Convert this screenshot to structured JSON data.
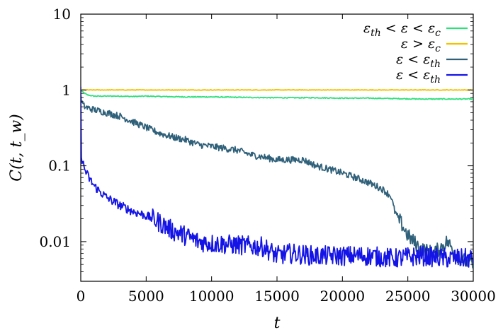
{
  "chart_data": {
    "type": "line",
    "title": "",
    "xlabel": "t",
    "ylabel": "C(t, t_w)",
    "xlim": [
      0,
      30000
    ],
    "ylim": [
      0.003,
      10
    ],
    "yscale": "log",
    "grid": false,
    "legend_position": "top-right",
    "x_ticks": [
      {
        "value": 0,
        "label": "0"
      },
      {
        "value": 5000,
        "label": "5000"
      },
      {
        "value": 10000,
        "label": "10000"
      },
      {
        "value": 15000,
        "label": "15000"
      },
      {
        "value": 20000,
        "label": "20000"
      },
      {
        "value": 25000,
        "label": "25000"
      },
      {
        "value": 30000,
        "label": "30000"
      }
    ],
    "y_ticks": [
      {
        "value": 0.01,
        "label": "0.01"
      },
      {
        "value": 0.1,
        "label": "0.1"
      },
      {
        "value": 1,
        "label": "1"
      },
      {
        "value": 10,
        "label": "10"
      }
    ],
    "series": [
      {
        "name": "ε_th < ε < ε_c",
        "color": "#2ee07a",
        "noise": 0.006,
        "x": [
          0,
          100,
          500,
          1000,
          2000,
          3000,
          4000,
          5000,
          6000,
          8000,
          10000,
          12000,
          15000,
          18000,
          20000,
          22000,
          24000,
          26000,
          27000,
          28000,
          30000
        ],
        "y": [
          1.0,
          0.95,
          0.86,
          0.83,
          0.83,
          0.83,
          0.82,
          0.83,
          0.82,
          0.81,
          0.81,
          0.8,
          0.79,
          0.79,
          0.78,
          0.78,
          0.77,
          0.76,
          0.76,
          0.76,
          0.76
        ]
      },
      {
        "name": "ε > ε_c",
        "color": "#f2c200",
        "noise": 0.004,
        "x": [
          0,
          5000,
          10000,
          15000,
          20000,
          25000,
          30000
        ],
        "y": [
          1.0,
          1.0,
          1.0,
          1.0,
          1.0,
          1.0,
          1.0
        ]
      },
      {
        "name": "ε < ε_th",
        "color": "#30617a",
        "noise": 0.045,
        "x": [
          0,
          50,
          200,
          500,
          1000,
          2000,
          3000,
          4000,
          5000,
          6000,
          7000,
          8000,
          9000,
          10000,
          11000,
          12000,
          13000,
          14000,
          15000,
          16000,
          17000,
          18000,
          19000,
          20000,
          21000,
          22000,
          23000,
          23700,
          24000,
          25000,
          26000,
          27000,
          28000,
          29000,
          30000
        ],
        "y": [
          0.85,
          0.72,
          0.62,
          0.58,
          0.55,
          0.5,
          0.45,
          0.38,
          0.32,
          0.27,
          0.24,
          0.22,
          0.19,
          0.18,
          0.17,
          0.16,
          0.14,
          0.13,
          0.12,
          0.12,
          0.12,
          0.1,
          0.09,
          0.08,
          0.07,
          0.06,
          0.05,
          0.04,
          0.025,
          0.012,
          0.008,
          0.007,
          0.01,
          0.006,
          0.005
        ]
      },
      {
        "name": "ε < ε_th",
        "color": "#1414e6",
        "noise": 0.06,
        "x": [
          0,
          30,
          100,
          300,
          600,
          1000,
          1500,
          2000,
          3000,
          4000,
          5000,
          6000,
          7000,
          8000,
          9000,
          10000,
          12000,
          14000,
          15000,
          16000,
          18000,
          20000,
          22000,
          24000,
          26000,
          28000,
          30000
        ],
        "y": [
          1.0,
          0.16,
          0.12,
          0.09,
          0.07,
          0.055,
          0.045,
          0.038,
          0.03,
          0.025,
          0.022,
          0.018,
          0.014,
          0.012,
          0.01,
          0.0095,
          0.009,
          0.0085,
          0.0065,
          0.007,
          0.0065,
          0.0065,
          0.0065,
          0.006,
          0.0065,
          0.006,
          0.006
        ]
      }
    ]
  }
}
